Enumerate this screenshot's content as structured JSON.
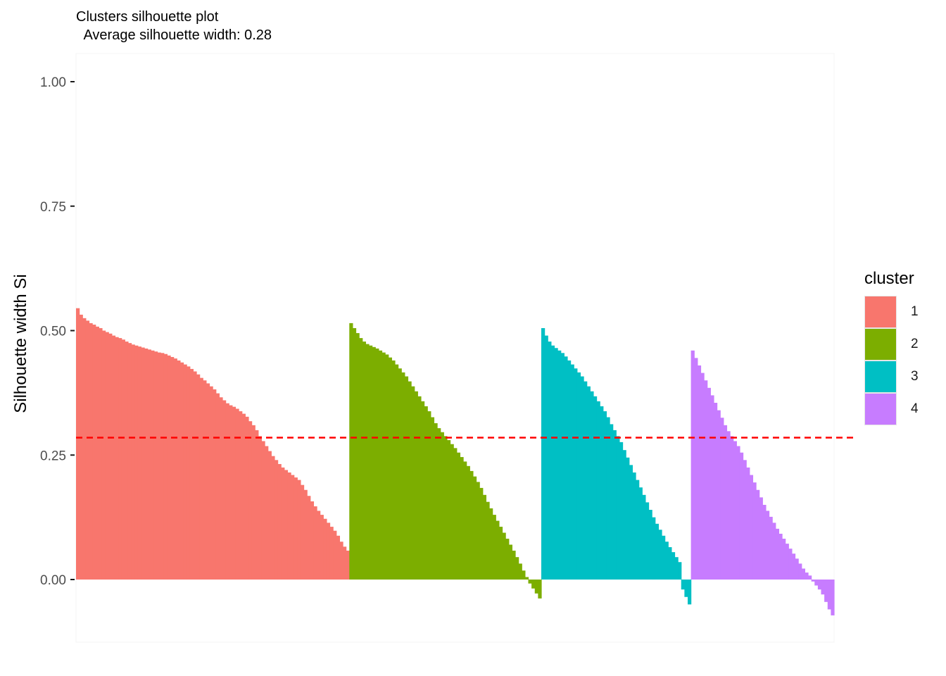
{
  "chart_data": {
    "type": "bar",
    "title": "Clusters silhouette plot",
    "subtitle": " Average silhouette width: 0.28",
    "ylabel": "Silhouette width Si",
    "xlabel": "",
    "ylim": [
      -0.1,
      1.05
    ],
    "y_ticks": [
      "0.00",
      "0.25",
      "0.50",
      "0.75",
      "1.00"
    ],
    "y_tick_values": [
      0,
      0.25,
      0.5,
      0.75,
      1.0
    ],
    "grid": false,
    "legend_position": "right",
    "legend_title": "cluster",
    "reference_line": {
      "value": 0.28,
      "color": "#ff0000",
      "style": "dashed"
    },
    "series": [
      {
        "name": "1",
        "color": "#F8766D",
        "values": [
          0.545,
          0.532,
          0.525,
          0.52,
          0.515,
          0.512,
          0.508,
          0.505,
          0.5,
          0.497,
          0.494,
          0.49,
          0.487,
          0.485,
          0.482,
          0.478,
          0.475,
          0.472,
          0.47,
          0.468,
          0.466,
          0.464,
          0.462,
          0.46,
          0.458,
          0.456,
          0.455,
          0.453,
          0.45,
          0.447,
          0.444,
          0.44,
          0.436,
          0.432,
          0.428,
          0.423,
          0.418,
          0.412,
          0.405,
          0.4,
          0.394,
          0.388,
          0.382,
          0.374,
          0.366,
          0.36,
          0.354,
          0.35,
          0.347,
          0.343,
          0.338,
          0.333,
          0.327,
          0.318,
          0.31,
          0.3,
          0.288,
          0.278,
          0.268,
          0.258,
          0.248,
          0.24,
          0.232,
          0.225,
          0.22,
          0.215,
          0.21,
          0.205,
          0.2,
          0.19,
          0.18,
          0.168,
          0.157,
          0.147,
          0.138,
          0.13,
          0.122,
          0.114,
          0.106,
          0.098,
          0.088,
          0.076,
          0.066,
          0.058
        ]
      },
      {
        "name": "2",
        "color": "#7CAE00",
        "values": [
          0.515,
          0.505,
          0.495,
          0.485,
          0.478,
          0.473,
          0.47,
          0.467,
          0.464,
          0.46,
          0.456,
          0.452,
          0.446,
          0.44,
          0.432,
          0.424,
          0.416,
          0.408,
          0.398,
          0.388,
          0.378,
          0.368,
          0.358,
          0.348,
          0.338,
          0.326,
          0.314,
          0.304,
          0.296,
          0.288,
          0.28,
          0.272,
          0.264,
          0.255,
          0.246,
          0.237,
          0.228,
          0.218,
          0.207,
          0.196,
          0.184,
          0.17,
          0.156,
          0.143,
          0.13,
          0.118,
          0.106,
          0.094,
          0.082,
          0.07,
          0.058,
          0.045,
          0.032,
          0.018,
          0.005,
          -0.008,
          -0.018,
          -0.028,
          -0.038
        ]
      },
      {
        "name": "3",
        "color": "#00BFC4",
        "values": [
          0.505,
          0.49,
          0.478,
          0.47,
          0.465,
          0.46,
          0.455,
          0.448,
          0.44,
          0.432,
          0.424,
          0.416,
          0.408,
          0.398,
          0.388,
          0.378,
          0.368,
          0.358,
          0.348,
          0.338,
          0.326,
          0.312,
          0.3,
          0.288,
          0.276,
          0.26,
          0.245,
          0.23,
          0.215,
          0.2,
          0.185,
          0.17,
          0.155,
          0.14,
          0.125,
          0.112,
          0.1,
          0.088,
          0.076,
          0.065,
          0.055,
          0.045,
          0.035,
          -0.02,
          -0.035,
          -0.05
        ]
      },
      {
        "name": "4",
        "color": "#C77CFF",
        "values": [
          0.46,
          0.445,
          0.43,
          0.415,
          0.4,
          0.385,
          0.37,
          0.355,
          0.34,
          0.325,
          0.31,
          0.298,
          0.288,
          0.278,
          0.268,
          0.255,
          0.24,
          0.225,
          0.21,
          0.195,
          0.18,
          0.165,
          0.15,
          0.138,
          0.126,
          0.114,
          0.102,
          0.092,
          0.082,
          0.072,
          0.062,
          0.052,
          0.042,
          0.032,
          0.022,
          0.014,
          0.008,
          -0.004,
          -0.012,
          -0.02,
          -0.03,
          -0.045,
          -0.06,
          -0.072
        ]
      }
    ]
  }
}
